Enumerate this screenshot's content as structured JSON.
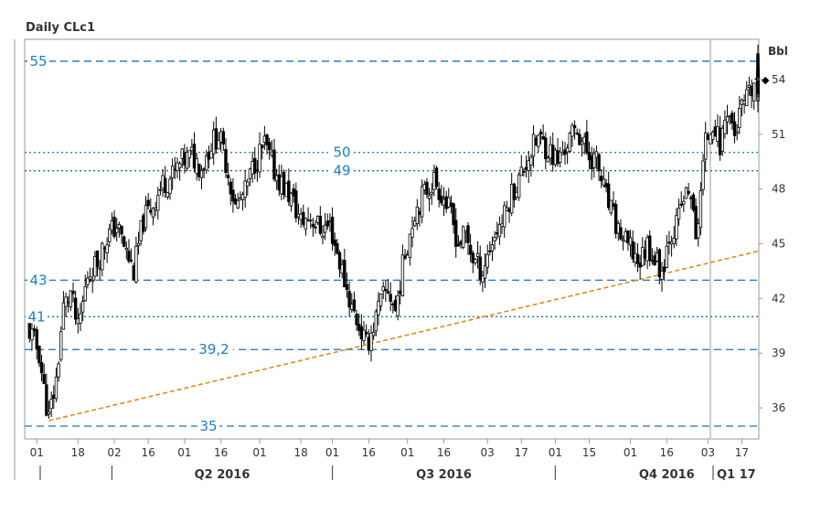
{
  "chart_data": {
    "type": "candlestick",
    "title": "Daily CLc1",
    "ylabel": "Bbl",
    "ylim": [
      34.3,
      56.2
    ],
    "y_ticks": [
      36,
      39,
      42,
      45,
      48,
      51,
      54
    ],
    "last_value_marker": "◆",
    "x_day_labels": [
      "01",
      "18",
      "02",
      "16",
      "01",
      "16",
      "01",
      "18",
      "01",
      "16",
      "01",
      "16",
      "03",
      "17",
      "01",
      "15",
      "01",
      "16",
      "03",
      "17"
    ],
    "x_day_dates": [
      "2016-03-01",
      "2016-03-18",
      "2016-04-02",
      "2016-04-16",
      "2016-05-01",
      "2016-05-16",
      "2016-06-01",
      "2016-06-18",
      "2016-07-01",
      "2016-07-16",
      "2016-08-01",
      "2016-08-16",
      "2016-09-03",
      "2016-09-17",
      "2016-10-01",
      "2016-10-15",
      "2016-11-01",
      "2016-11-16",
      "2016-12-03",
      "2016-12-17"
    ],
    "quarter_labels": [
      "Q2 2016",
      "Q3 2016",
      "Q4 2016",
      "Q1 17"
    ],
    "quarter_start_dates": [
      "2016-04-01",
      "2016-07-01",
      "2016-10-01",
      "2017-01-01"
    ],
    "x_range": [
      "2016-02-25",
      "2016-12-24"
    ],
    "horizontal_levels": [
      {
        "label": "55",
        "value": 55,
        "style": "dashed"
      },
      {
        "label": "50",
        "value": 50,
        "style": "dotted"
      },
      {
        "label": "49",
        "value": 49,
        "style": "dotted"
      },
      {
        "label": "43",
        "value": 43,
        "style": "dashed"
      },
      {
        "label": "41",
        "value": 41,
        "style": "dotted"
      },
      {
        "label": "39,2",
        "value": 39.2,
        "style": "dashed"
      },
      {
        "label": "35",
        "value": 35,
        "style": "dashed"
      }
    ],
    "trendline": {
      "start": {
        "date": "2016-03-06",
        "value": 35.3
      },
      "end": {
        "date": "2016-12-24",
        "value": 44.6
      }
    },
    "cursor_line_date": "2016-12-04",
    "series": [
      {
        "date": "2016-02-26",
        "close": 40.5
      },
      {
        "date": "2016-03-02",
        "close": 39.0
      },
      {
        "date": "2016-03-04",
        "close": 37.0
      },
      {
        "date": "2016-03-06",
        "close": 35.4
      },
      {
        "date": "2016-03-09",
        "close": 37.5
      },
      {
        "date": "2016-03-12",
        "close": 41.5
      },
      {
        "date": "2016-03-15",
        "close": 42.3
      },
      {
        "date": "2016-03-18",
        "close": 40.2
      },
      {
        "date": "2016-03-22",
        "close": 43.3
      },
      {
        "date": "2016-03-26",
        "close": 44.0
      },
      {
        "date": "2016-03-30",
        "close": 45.4
      },
      {
        "date": "2016-04-03",
        "close": 46.0
      },
      {
        "date": "2016-04-07",
        "close": 44.5
      },
      {
        "date": "2016-04-10",
        "close": 43.5
      },
      {
        "date": "2016-04-14",
        "close": 46.3
      },
      {
        "date": "2016-04-18",
        "close": 47.2
      },
      {
        "date": "2016-04-22",
        "close": 48.3
      },
      {
        "date": "2016-04-26",
        "close": 48.7
      },
      {
        "date": "2016-04-30",
        "close": 49.5
      },
      {
        "date": "2016-05-04",
        "close": 49.8
      },
      {
        "date": "2016-05-08",
        "close": 49.2
      },
      {
        "date": "2016-05-12",
        "close": 50.5
      },
      {
        "date": "2016-05-15",
        "close": 51.0
      },
      {
        "date": "2016-05-18",
        "close": 49.5
      },
      {
        "date": "2016-05-22",
        "close": 47.0
      },
      {
        "date": "2016-05-26",
        "close": 47.8
      },
      {
        "date": "2016-05-30",
        "close": 49.5
      },
      {
        "date": "2016-06-03",
        "close": 50.4
      },
      {
        "date": "2016-06-07",
        "close": 49.0
      },
      {
        "date": "2016-06-10",
        "close": 48.3
      },
      {
        "date": "2016-06-14",
        "close": 47.5
      },
      {
        "date": "2016-06-18",
        "close": 46.2
      },
      {
        "date": "2016-06-22",
        "close": 46.5
      },
      {
        "date": "2016-06-26",
        "close": 45.8
      },
      {
        "date": "2016-06-30",
        "close": 46.0
      },
      {
        "date": "2016-07-03",
        "close": 44.5
      },
      {
        "date": "2016-07-06",
        "close": 43.0
      },
      {
        "date": "2016-07-09",
        "close": 41.5
      },
      {
        "date": "2016-07-12",
        "close": 40.5
      },
      {
        "date": "2016-07-15",
        "close": 39.4
      },
      {
        "date": "2016-07-18",
        "close": 40.5
      },
      {
        "date": "2016-07-21",
        "close": 41.8
      },
      {
        "date": "2016-07-24",
        "close": 42.5
      },
      {
        "date": "2016-07-27",
        "close": 41.3
      },
      {
        "date": "2016-07-31",
        "close": 44.5
      },
      {
        "date": "2016-08-04",
        "close": 46.8
      },
      {
        "date": "2016-08-08",
        "close": 47.8
      },
      {
        "date": "2016-08-12",
        "close": 48.5
      },
      {
        "date": "2016-08-16",
        "close": 47.5
      },
      {
        "date": "2016-08-19",
        "close": 46.5
      },
      {
        "date": "2016-08-22",
        "close": 45.0
      },
      {
        "date": "2016-08-25",
        "close": 45.5
      },
      {
        "date": "2016-08-28",
        "close": 44.2
      },
      {
        "date": "2016-09-01",
        "close": 43.5
      },
      {
        "date": "2016-09-04",
        "close": 44.8
      },
      {
        "date": "2016-09-07",
        "close": 45.8
      },
      {
        "date": "2016-09-10",
        "close": 46.5
      },
      {
        "date": "2016-09-13",
        "close": 47.8
      },
      {
        "date": "2016-09-16",
        "close": 48.5
      },
      {
        "date": "2016-09-20",
        "close": 49.8
      },
      {
        "date": "2016-09-24",
        "close": 50.8
      },
      {
        "date": "2016-09-28",
        "close": 50.2
      },
      {
        "date": "2016-10-02",
        "close": 49.5
      },
      {
        "date": "2016-10-06",
        "close": 50.5
      },
      {
        "date": "2016-10-10",
        "close": 51.3
      },
      {
        "date": "2016-10-14",
        "close": 50.0
      },
      {
        "date": "2016-10-18",
        "close": 49.5
      },
      {
        "date": "2016-10-22",
        "close": 47.5
      },
      {
        "date": "2016-10-26",
        "close": 46.0
      },
      {
        "date": "2016-10-30",
        "close": 45.0
      },
      {
        "date": "2016-11-02",
        "close": 44.5
      },
      {
        "date": "2016-11-05",
        "close": 44.0
      },
      {
        "date": "2016-11-08",
        "close": 45.0
      },
      {
        "date": "2016-11-11",
        "close": 44.2
      },
      {
        "date": "2016-11-14",
        "close": 43.5
      },
      {
        "date": "2016-11-17",
        "close": 45.5
      },
      {
        "date": "2016-11-20",
        "close": 46.0
      },
      {
        "date": "2016-11-23",
        "close": 47.5
      },
      {
        "date": "2016-11-26",
        "close": 47.8
      },
      {
        "date": "2016-11-28",
        "close": 45.0
      },
      {
        "date": "2016-11-30",
        "close": 48.0
      },
      {
        "date": "2016-12-02",
        "close": 50.5
      },
      {
        "date": "2016-12-05",
        "close": 51.8
      },
      {
        "date": "2016-12-08",
        "close": 50.3
      },
      {
        "date": "2016-12-11",
        "close": 52.5
      },
      {
        "date": "2016-12-14",
        "close": 51.0
      },
      {
        "date": "2016-12-17",
        "close": 52.4
      },
      {
        "date": "2016-12-20",
        "close": 53.0
      },
      {
        "date": "2016-12-23",
        "close": 54.0
      },
      {
        "date": "2016-12-26",
        "close": 53.5
      },
      {
        "date": "2016-12-29",
        "close": 53.8
      },
      {
        "date": "2017-01-01",
        "close": 54.3
      },
      {
        "date": "2017-01-03",
        "close": 55.0
      },
      {
        "date": "2017-01-05",
        "close": 53.2
      },
      {
        "date": "2017-01-07",
        "close": 53.8
      },
      {
        "date": "2017-01-09",
        "close": 54.0
      }
    ]
  },
  "colors": {
    "level_line": "#1a73b8",
    "level_label": "#1a7fc4",
    "trendline": "#e08a1e",
    "candles": "#000000",
    "axis": "#999999",
    "cursor_line": "#cccccc"
  }
}
